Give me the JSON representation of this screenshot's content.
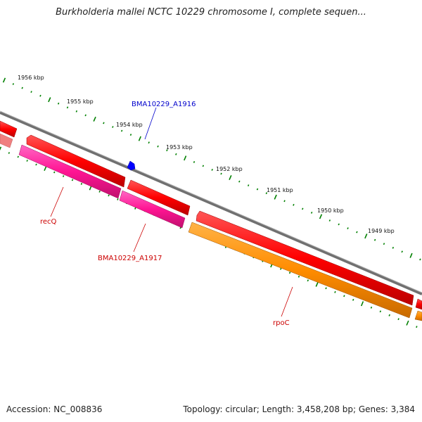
{
  "title": "Burkholderia mallei NCTC 10229 chromosome I, complete sequen...",
  "footer": {
    "accession": "Accession: NC_008836",
    "summary": "Topology: circular; Length: 3,458,208 bp; Genes: 3,384"
  },
  "ruler": {
    "ticks": [
      "1956 kbp",
      "1955 kbp",
      "1954 kbp",
      "1953 kbp",
      "1952 kbp",
      "1951 kbp",
      "1950 kbp",
      "1949 kbp"
    ]
  },
  "genes": [
    {
      "name": "BMA10229_A1916",
      "color": "#0000cc"
    },
    {
      "name": "recQ",
      "color": "#cc0000"
    },
    {
      "name": "BMA10229_A1917",
      "color": "#cc0000"
    },
    {
      "name": "rpoC",
      "color": "#cc0000"
    }
  ],
  "colors": {
    "backbone": "#808080",
    "forward_gene": "#ff0000",
    "reverse_cds_magenta": "#ff1493",
    "reverse_cds_orange": "#ff8c00",
    "marker": "#0000ff",
    "ruler_dots": "#008000"
  }
}
